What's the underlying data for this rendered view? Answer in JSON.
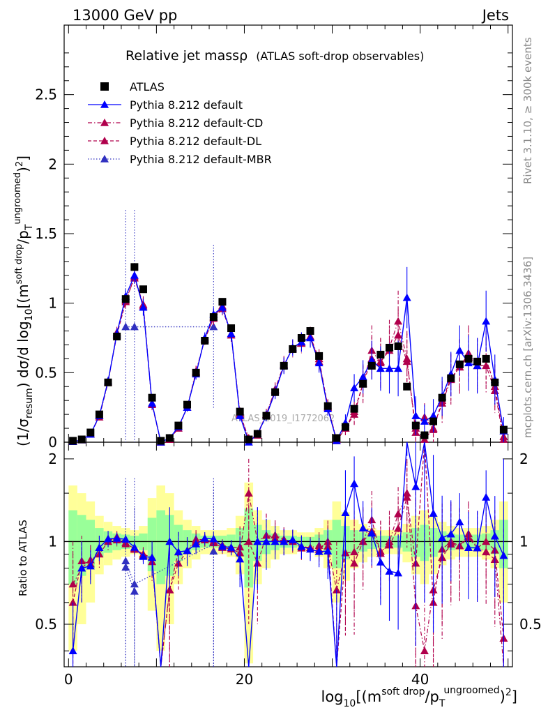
{
  "header": {
    "left": "13000 GeV pp",
    "right": "Jets"
  },
  "side_labels": {
    "rivet": "Rivet 3.1.10, ≥ 300k events",
    "mcplots": "mcplots.cern.ch [arXiv:1306.3436]"
  },
  "title": {
    "main": "Relative jet massρ",
    "sub": "(ATLAS soft-drop observables)"
  },
  "watermark": "ATLAS_2019_I1772062",
  "ylabel_top": "(1/σresum) dσ/d log10[(m^(soft drop)/pT^(ungroomed))^2]",
  "ylabel_top_parts": {
    "p1": "(1/σ",
    "sub1": "resum",
    "p2": ") dσ/d log",
    "sub2": "10",
    "p3": "[(m",
    "sup1": "soft drop",
    "p4": "/p",
    "sub3": "T",
    "sup2": "ungroomed",
    "p5": ")",
    "sup3": "2",
    "p6": "]"
  },
  "ylabel_ratio": "Ratio to ATLAS",
  "xlabel_parts": {
    "p1": "log",
    "sub1": "10",
    "p2": "[(m",
    "sup1": "soft drop",
    "p3": "/p",
    "sub2": "T",
    "sup2": "ungroomed",
    "p4": ")",
    "sup3": "2",
    "p5": "]"
  },
  "chart_data": {
    "type": "scatter",
    "title": "Relative jet massρ (ATLAS soft-drop observables)",
    "xlabel": "log10[(m^soft drop/pT^ungroomed)^2]",
    "ylabel": "(1/σresum) dσ/d log10[(m^soft drop/pT^ungroomed)^2]",
    "xlim": [
      -0.5,
      50.5
    ],
    "ylim": [
      0,
      3.0
    ],
    "ratio_ylim": [
      0.35,
      2.3
    ],
    "x_ticks": [
      0,
      20,
      40
    ],
    "y_ticks": [
      0,
      0.5,
      1,
      1.5,
      2,
      2.5
    ],
    "y_tick_labels": [
      "0",
      "0.5",
      "1",
      "1.5",
      "2",
      "2.5"
    ],
    "ratio_ticks": [
      0.5,
      1,
      2
    ],
    "ratio_tick_labels": [
      "0.5",
      "1",
      "2"
    ],
    "x_tick_labels": [
      "0",
      "20",
      "40"
    ],
    "legend": [
      {
        "name": "ATLAS",
        "color": "#000000",
        "marker": "square",
        "line": "none"
      },
      {
        "name": "Pythia 8.212 default",
        "color": "#0000ff",
        "marker": "triangle",
        "line": "solid"
      },
      {
        "name": "Pythia 8.212 default-CD",
        "color": "#b0004c",
        "marker": "triangle",
        "line": "dashdot"
      },
      {
        "name": "Pythia 8.212 default-DL",
        "color": "#b0004c",
        "marker": "triangle",
        "line": "dashed"
      },
      {
        "name": "Pythia 8.212 default-MBR",
        "color": "#3030c0",
        "marker": "triangle",
        "line": "dotted"
      }
    ],
    "x": [
      0.5,
      1.5,
      2.5,
      3.5,
      4.5,
      5.5,
      6.5,
      7.5,
      8.5,
      9.5,
      10.5,
      11.5,
      12.5,
      13.5,
      14.5,
      15.5,
      16.5,
      17.5,
      18.5,
      19.5,
      20.5,
      21.5,
      22.5,
      23.5,
      24.5,
      25.5,
      26.5,
      27.5,
      28.5,
      29.5,
      30.5,
      31.5,
      32.5,
      33.5,
      34.5,
      35.5,
      36.5,
      37.5,
      38.5,
      39.5,
      40.5,
      41.5,
      42.5,
      43.5,
      44.5,
      45.5,
      46.5,
      47.5,
      48.5,
      49.5
    ],
    "atlas": [
      0.01,
      0.02,
      0.07,
      0.2,
      0.43,
      0.76,
      1.03,
      1.26,
      1.1,
      0.32,
      0.01,
      0.03,
      0.12,
      0.27,
      0.5,
      0.73,
      0.9,
      1.01,
      0.82,
      0.22,
      0.02,
      0.06,
      0.19,
      0.36,
      0.55,
      0.67,
      0.75,
      0.8,
      0.62,
      0.26,
      0.03,
      0.11,
      0.24,
      0.42,
      0.55,
      0.63,
      0.68,
      0.69,
      0.4,
      0.12,
      0.05,
      0.15,
      0.32,
      0.46,
      0.56,
      0.6,
      0.58,
      0.6,
      0.43,
      0.09
    ],
    "atlas_band": [
      0.3,
      0.25,
      0.2,
      0.12,
      0.09,
      0.07,
      0.06,
      0.05,
      0.07,
      0.22,
      0.3,
      0.25,
      0.15,
      0.1,
      0.07,
      0.05,
      0.05,
      0.05,
      0.06,
      0.12,
      0.32,
      0.15,
      0.1,
      0.07,
      0.05,
      0.05,
      0.04,
      0.04,
      0.06,
      0.1,
      0.2,
      0.14,
      0.1,
      0.08,
      0.06,
      0.05,
      0.05,
      0.05,
      0.08,
      0.12,
      0.15,
      0.12,
      0.09,
      0.07,
      0.06,
      0.06,
      0.06,
      0.07,
      0.1,
      0.2
    ],
    "series": [
      {
        "name": "Pythia 8.212 default",
        "values": [
          0.004,
          0.016,
          0.057,
          0.19,
          0.44,
          0.78,
          1.05,
          1.2,
          0.97,
          0.28,
          0.0,
          0.03,
          0.11,
          0.25,
          0.49,
          0.75,
          0.92,
          0.97,
          0.78,
          0.19,
          0.0,
          0.06,
          0.19,
          0.36,
          0.55,
          0.68,
          0.72,
          0.75,
          0.57,
          0.24,
          0.01,
          0.14,
          0.39,
          0.47,
          0.59,
          0.53,
          0.53,
          0.53,
          1.04,
          0.19,
          0.15,
          0.19,
          0.33,
          0.49,
          0.66,
          0.57,
          0.55,
          0.87,
          0.45,
          0.08
        ],
        "err": [
          0.002,
          0.004,
          0.008,
          0.02,
          0.03,
          0.04,
          0.05,
          0.06,
          0.06,
          0.04,
          0.0,
          0.01,
          0.02,
          0.03,
          0.04,
          0.04,
          0.05,
          0.05,
          0.05,
          0.04,
          0.0,
          0.02,
          0.04,
          0.05,
          0.06,
          0.06,
          0.07,
          0.07,
          0.07,
          0.05,
          0.01,
          0.06,
          0.1,
          0.12,
          0.14,
          0.16,
          0.18,
          0.2,
          0.22,
          0.14,
          0.12,
          0.12,
          0.14,
          0.16,
          0.18,
          0.2,
          0.2,
          0.22,
          0.18,
          0.1
        ]
      },
      {
        "name": "Pythia 8.212 default-CD",
        "values": [
          0.007,
          0.016,
          0.06,
          0.18,
          0.43,
          0.79,
          1.02,
          1.18,
          0.98,
          0.27,
          0.0,
          0.02,
          0.11,
          0.25,
          0.51,
          0.74,
          0.89,
          0.96,
          0.77,
          0.2,
          0.03,
          0.06,
          0.2,
          0.38,
          0.56,
          0.67,
          0.71,
          0.76,
          0.6,
          0.25,
          0.02,
          0.1,
          0.2,
          0.42,
          0.66,
          0.57,
          0.68,
          0.87,
          0.6,
          0.07,
          0.02,
          0.1,
          0.28,
          0.45,
          0.54,
          0.64,
          0.55,
          0.55,
          0.37,
          0.02
        ],
        "err": [
          0.003,
          0.004,
          0.008,
          0.02,
          0.03,
          0.04,
          0.05,
          0.06,
          0.06,
          0.04,
          0.0,
          0.01,
          0.02,
          0.03,
          0.04,
          0.04,
          0.05,
          0.05,
          0.05,
          0.04,
          0.01,
          0.02,
          0.04,
          0.05,
          0.06,
          0.06,
          0.07,
          0.07,
          0.07,
          0.05,
          0.01,
          0.05,
          0.09,
          0.14,
          0.18,
          0.18,
          0.2,
          0.22,
          0.2,
          0.1,
          0.06,
          0.1,
          0.14,
          0.18,
          0.2,
          0.2,
          0.2,
          0.2,
          0.16,
          0.05
        ]
      },
      {
        "name": "Pythia 8.212 default-DL",
        "values": [
          0.006,
          0.017,
          0.058,
          0.19,
          0.44,
          0.77,
          1.01,
          1.19,
          0.99,
          0.28,
          0.0,
          0.02,
          0.1,
          0.25,
          0.5,
          0.74,
          0.9,
          0.98,
          0.78,
          0.21,
          0.02,
          0.05,
          0.2,
          0.37,
          0.55,
          0.68,
          0.72,
          0.76,
          0.58,
          0.26,
          0.01,
          0.1,
          0.22,
          0.42,
          0.6,
          0.58,
          0.66,
          0.77,
          0.58,
          0.1,
          0.18,
          0.09,
          0.3,
          0.46,
          0.54,
          0.62,
          0.55,
          0.6,
          0.4,
          0.04
        ],
        "err": [
          0.003,
          0.004,
          0.008,
          0.02,
          0.03,
          0.04,
          0.05,
          0.06,
          0.06,
          0.04,
          0.0,
          0.01,
          0.02,
          0.03,
          0.04,
          0.04,
          0.05,
          0.05,
          0.05,
          0.04,
          0.01,
          0.02,
          0.04,
          0.05,
          0.06,
          0.06,
          0.07,
          0.07,
          0.07,
          0.05,
          0.01,
          0.05,
          0.09,
          0.13,
          0.16,
          0.17,
          0.18,
          0.2,
          0.2,
          0.1,
          0.1,
          0.09,
          0.14,
          0.18,
          0.2,
          0.2,
          0.2,
          0.2,
          0.16,
          0.06
        ]
      },
      {
        "name": "Pythia 8.212 default-MBR",
        "values": [
          null,
          null,
          null,
          null,
          null,
          null,
          0.83,
          0.83,
          null,
          null,
          null,
          null,
          null,
          null,
          null,
          null,
          0.83,
          null,
          null,
          null,
          null,
          null,
          null,
          null,
          null,
          null,
          null,
          null,
          null,
          null,
          null,
          null,
          null,
          null,
          null,
          null,
          null,
          null,
          null,
          null,
          null,
          null,
          null,
          null,
          null,
          null,
          null,
          null,
          null,
          null
        ],
        "err": [
          null,
          null,
          null,
          null,
          null,
          null,
          0.84,
          0.84,
          null,
          null,
          null,
          null,
          null,
          null,
          null,
          null,
          0.59,
          null,
          null,
          null,
          null,
          null,
          null,
          null,
          null,
          null,
          null,
          null,
          null,
          null,
          null,
          null,
          null,
          null,
          null,
          null,
          null,
          null,
          null,
          null,
          null,
          null,
          null,
          null,
          null,
          null,
          null,
          null,
          null,
          null
        ]
      }
    ]
  }
}
